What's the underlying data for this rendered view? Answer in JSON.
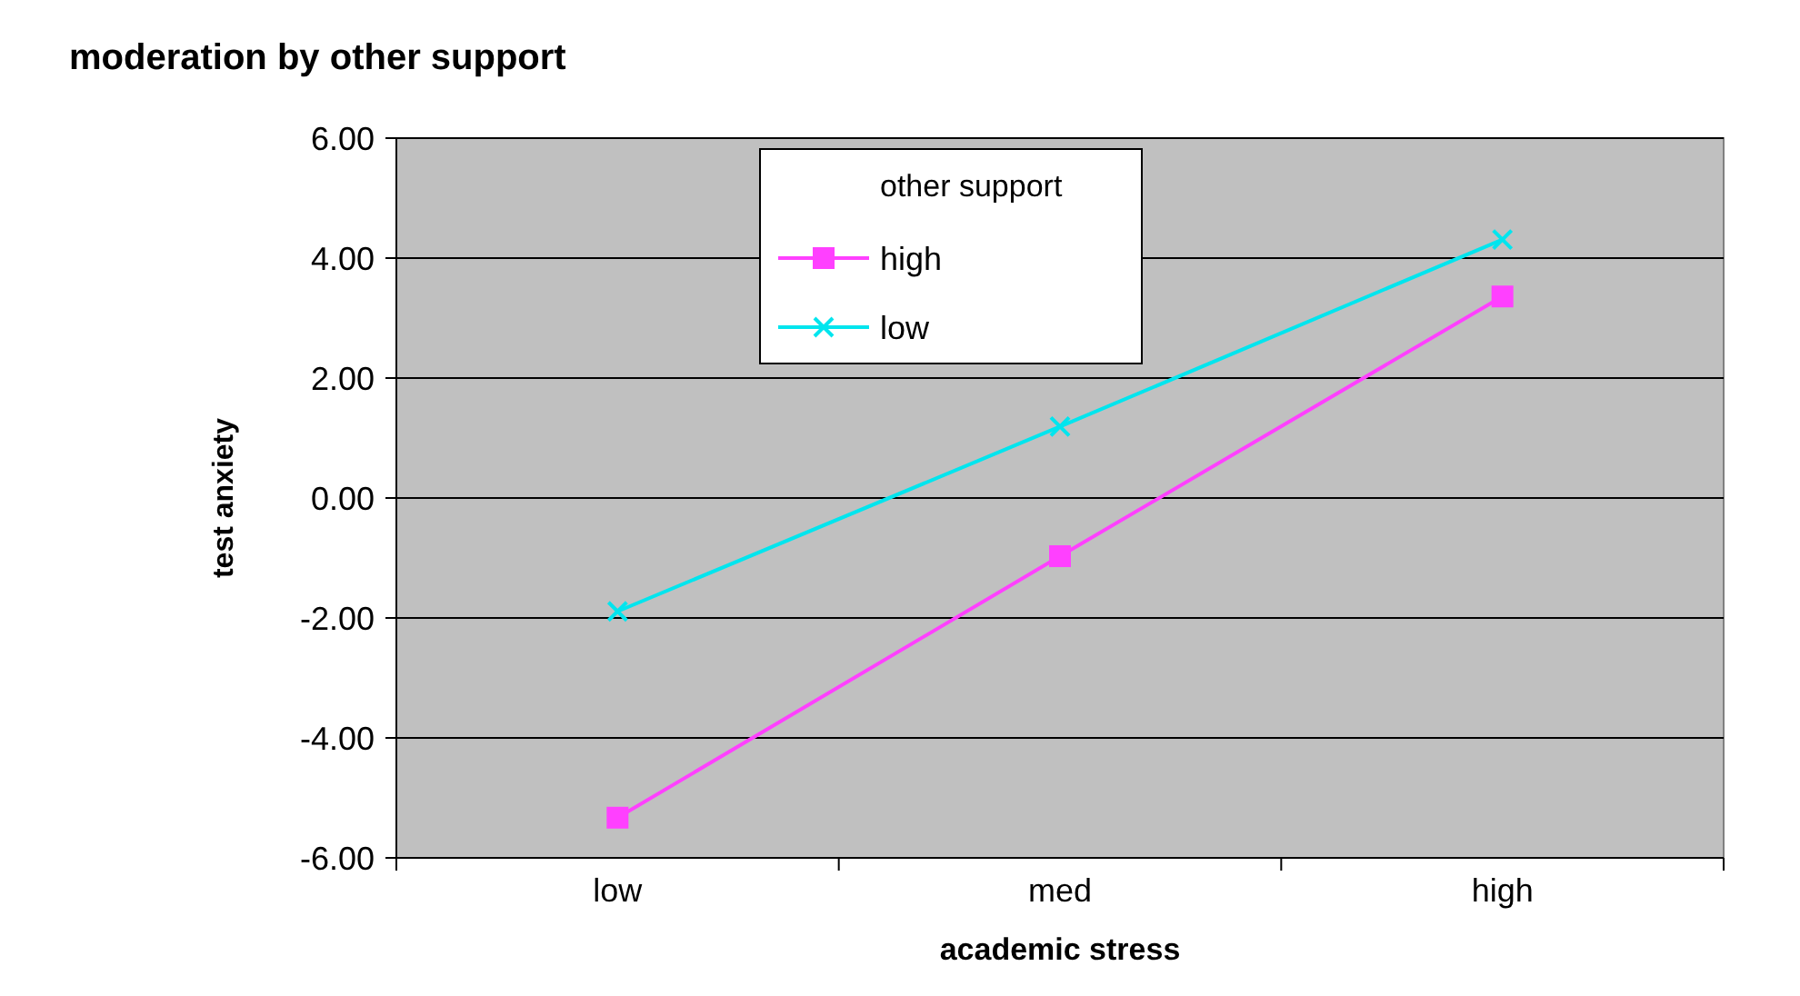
{
  "chart_data": {
    "type": "line",
    "title": "moderation by other support",
    "xlabel": "academic stress",
    "ylabel": "test anxiety",
    "legend_title": "other support",
    "categories": [
      "low",
      "med",
      "high"
    ],
    "series": [
      {
        "name": "high",
        "color": "#ff40ff",
        "values": [
          -5.33,
          -0.97,
          3.36
        ],
        "marker": "square"
      },
      {
        "name": "low",
        "color": "#00e5ee",
        "values": [
          -1.89,
          1.19,
          4.31
        ],
        "marker": "cross"
      }
    ],
    "ylim": [
      -6,
      6
    ],
    "yticks": [
      {
        "value": -6,
        "label": "-6.00"
      },
      {
        "value": -4,
        "label": "-4.00"
      },
      {
        "value": -2,
        "label": "-2.00"
      },
      {
        "value": 0,
        "label": "0.00"
      },
      {
        "value": 2,
        "label": "2.00"
      },
      {
        "value": 4,
        "label": "4.00"
      },
      {
        "value": 6,
        "label": "6.00"
      }
    ],
    "grid": "y",
    "legend": "top"
  }
}
